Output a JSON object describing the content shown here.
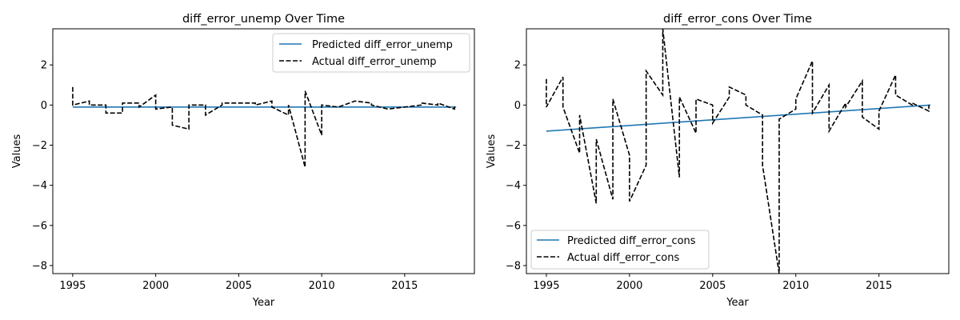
{
  "chart_data": [
    {
      "type": "line",
      "title": "diff_error_unemp Over Time",
      "xlabel": "Year",
      "ylabel": "Values",
      "xlim": [
        1993.8,
        2019.2
      ],
      "ylim": [
        -8.4,
        3.8
      ],
      "xticks": [
        1995,
        2000,
        2005,
        2010,
        2015
      ],
      "yticks": [
        2,
        0,
        -2,
        -4,
        -6,
        -8
      ],
      "xtick_labels": [
        "1995",
        "2000",
        "2005",
        "2010",
        "2015"
      ],
      "ytick_labels": [
        "2",
        "0",
        "−2",
        "−4",
        "−6",
        "−8"
      ],
      "grid": false,
      "legend": "upper right",
      "series": [
        {
          "name": "Predicted diff_error_unemp",
          "color": "#1f77b4",
          "style": "solid",
          "x": [
            1995,
            2018.1
          ],
          "y": [
            -0.1,
            -0.1
          ]
        },
        {
          "name": "Actual diff_error_unemp",
          "color": "#000000",
          "style": "dashed",
          "x": [
            1995,
            1995,
            1996,
            1996,
            1997,
            1997,
            1998,
            1998,
            1999,
            1999,
            2000,
            2000,
            2001,
            2001,
            2002,
            2002,
            2003,
            2003,
            2004,
            2004,
            2005,
            2005,
            2006,
            2006,
            2007,
            2007,
            2008,
            2008,
            2009,
            2009,
            2010,
            2010,
            2011,
            2011,
            2012,
            2012,
            2013,
            2013,
            2014,
            2014,
            2015,
            2015,
            2016,
            2016,
            2017,
            2017,
            2018,
            2018
          ],
          "y": [
            0.9,
            0.0,
            0.2,
            0.0,
            0.0,
            -0.4,
            -0.4,
            0.1,
            0.1,
            -0.1,
            0.5,
            -0.2,
            -0.1,
            -1.0,
            -1.2,
            0.0,
            0.0,
            -0.5,
            0.0,
            0.1,
            0.1,
            0.1,
            0.1,
            0.0,
            0.2,
            -0.1,
            -0.5,
            0.0,
            -3.1,
            0.7,
            -1.5,
            0.0,
            -0.1,
            -0.1,
            0.2,
            0.2,
            0.1,
            0.0,
            -0.2,
            -0.2,
            -0.1,
            -0.1,
            0.0,
            0.1,
            0.0,
            0.1,
            -0.2,
            0.0
          ]
        }
      ]
    },
    {
      "type": "line",
      "title": "diff_error_cons Over Time",
      "xlabel": "Year",
      "ylabel": "Values",
      "xlim": [
        1993.8,
        2019.2
      ],
      "ylim": [
        -8.4,
        3.8
      ],
      "xticks": [
        1995,
        2000,
        2005,
        2010,
        2015
      ],
      "yticks": [
        2,
        0,
        -2,
        -4,
        -6,
        -8
      ],
      "xtick_labels": [
        "1995",
        "2000",
        "2005",
        "2010",
        "2015"
      ],
      "ytick_labels": [
        "2",
        "0",
        "−2",
        "−4",
        "−6",
        "−8"
      ],
      "grid": false,
      "legend": "lower left",
      "series": [
        {
          "name": "Predicted diff_error_cons",
          "color": "#1f77b4",
          "style": "solid",
          "x": [
            1995,
            2018.1
          ],
          "y": [
            -1.3,
            0.0
          ]
        },
        {
          "name": "Actual diff_error_cons",
          "color": "#000000",
          "style": "dashed",
          "x": [
            1995,
            1995,
            1996,
            1996,
            1997,
            1997,
            1998,
            1998,
            1999,
            1999,
            2000,
            2000,
            2001,
            2001,
            2002,
            2002,
            2003,
            2003,
            2004,
            2004,
            2005,
            2005,
            2006,
            2006,
            2007,
            2007,
            2008,
            2008,
            2009,
            2009,
            2010,
            2010,
            2011,
            2011,
            2012,
            2012,
            2013,
            2013,
            2014,
            2014,
            2015,
            2015,
            2016,
            2016,
            2017,
            2017,
            2018,
            2018
          ],
          "y": [
            1.3,
            -0.1,
            1.4,
            -0.1,
            -2.4,
            -0.5,
            -4.9,
            -1.7,
            -4.7,
            0.3,
            -2.5,
            -4.8,
            -3.0,
            1.7,
            0.5,
            3.8,
            -3.6,
            0.4,
            -1.4,
            0.3,
            0.0,
            -0.9,
            0.4,
            0.9,
            0.5,
            0.0,
            -0.5,
            -3.0,
            -8.4,
            -0.7,
            -0.2,
            0.3,
            2.2,
            -0.4,
            1.0,
            -1.3,
            0.1,
            -0.1,
            1.2,
            -0.6,
            -1.2,
            -0.3,
            1.5,
            0.5,
            0.0,
            0.1,
            -0.3,
            0.0
          ]
        }
      ]
    }
  ]
}
